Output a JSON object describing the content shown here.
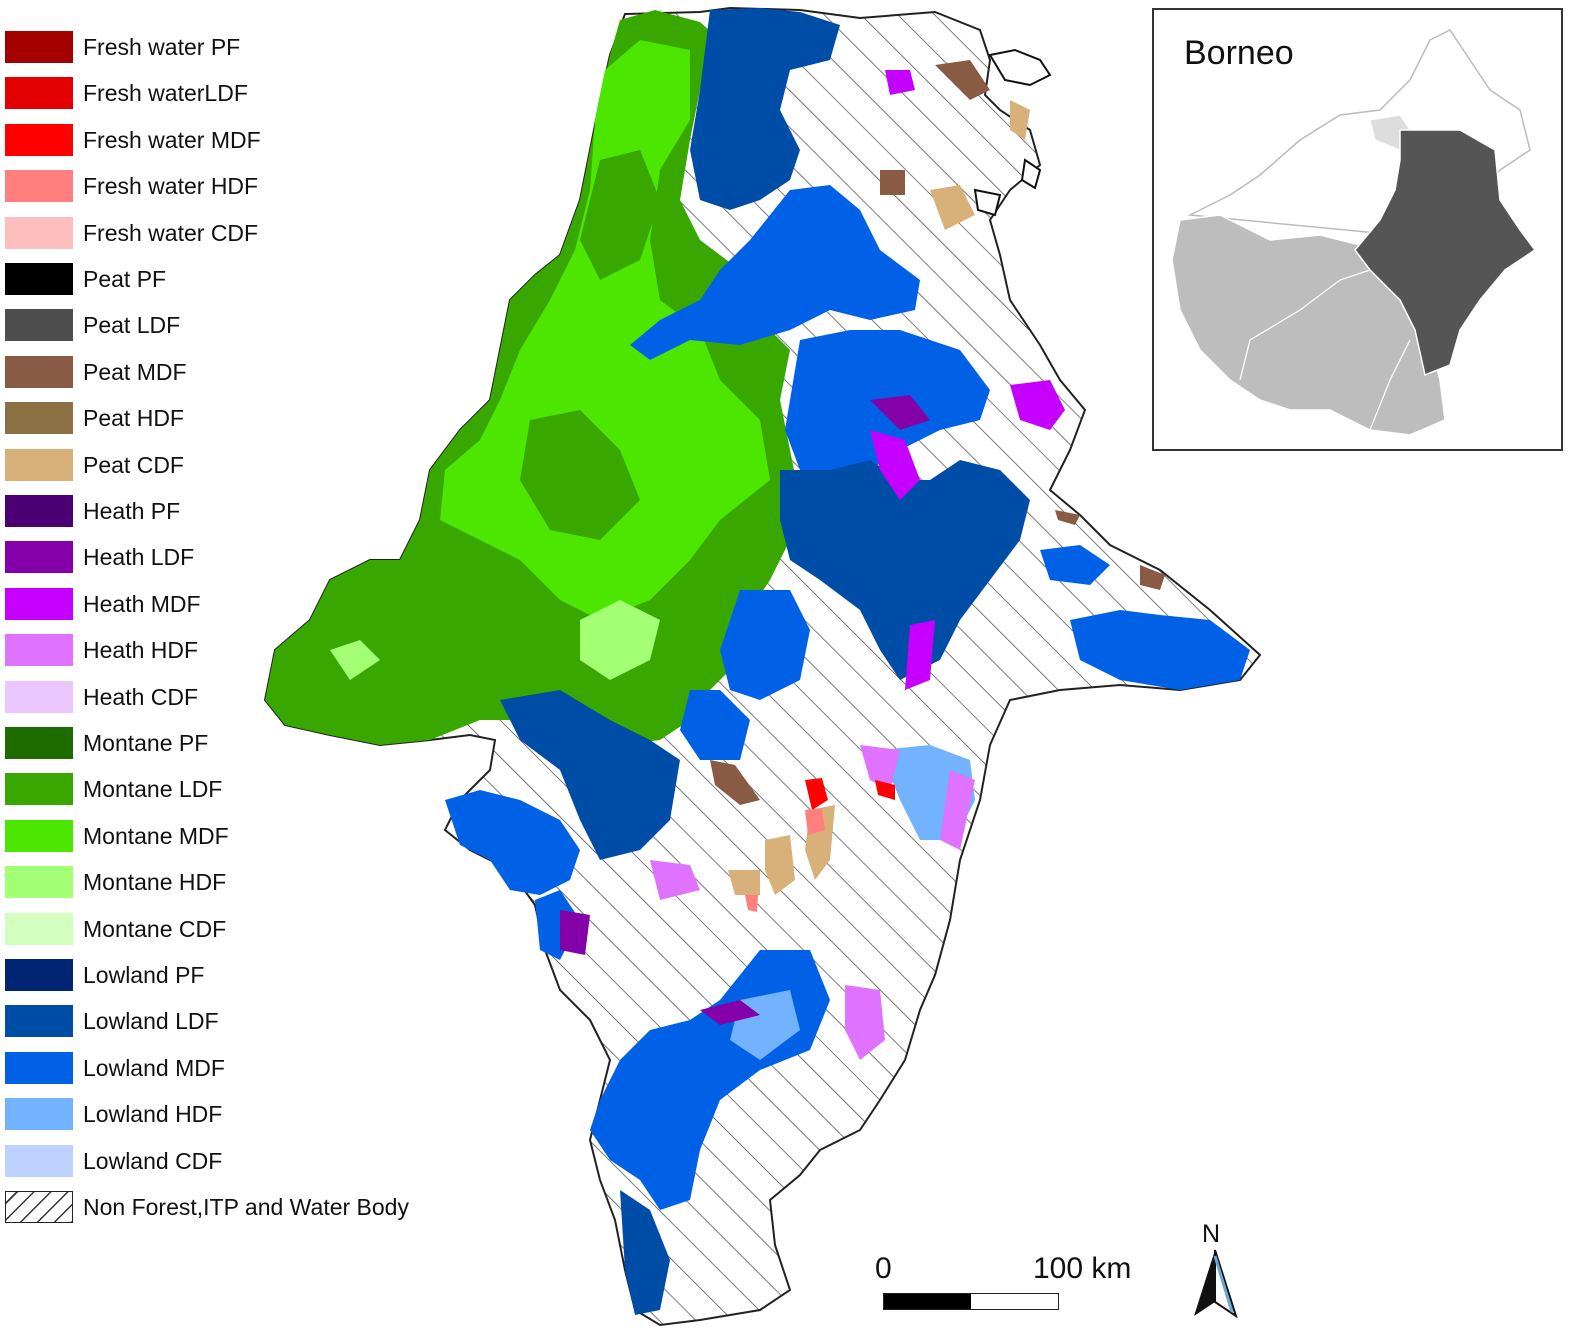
{
  "legend": {
    "items": [
      {
        "label": "Fresh water PF",
        "color": "#A50000"
      },
      {
        "label": "Fresh waterLDF",
        "color": "#E30000"
      },
      {
        "label": "Fresh water MDF",
        "color": "#FF0000"
      },
      {
        "label": "Fresh water HDF",
        "color": "#FF7F7F"
      },
      {
        "label": "Fresh water CDF",
        "color": "#FFBEBE"
      },
      {
        "label": "Peat PF",
        "color": "#000000"
      },
      {
        "label": "Peat LDF",
        "color": "#4E4E4E"
      },
      {
        "label": "Peat MDF",
        "color": "#895A44"
      },
      {
        "label": "Peat HDF",
        "color": "#8B7043"
      },
      {
        "label": "Peat CDF",
        "color": "#D7B07A"
      },
      {
        "label": "Heath PF",
        "color": "#4C0073"
      },
      {
        "label": "Heath LDF",
        "color": "#8400A8"
      },
      {
        "label": "Heath MDF",
        "color": "#C500FF"
      },
      {
        "label": "Heath HDF",
        "color": "#DF73FF"
      },
      {
        "label": "Heath CDF",
        "color": "#EBC6FF"
      },
      {
        "label": "Montane PF",
        "color": "#1E6B00"
      },
      {
        "label": "Montane LDF",
        "color": "#38A800"
      },
      {
        "label": "Montane MDF",
        "color": "#4CE600"
      },
      {
        "label": "Montane HDF",
        "color": "#A3FF73"
      },
      {
        "label": "Montane CDF",
        "color": "#D3FFBE"
      },
      {
        "label": "Lowland PF",
        "color": "#002673"
      },
      {
        "label": "Lowland LDF",
        "color": "#004DA8"
      },
      {
        "label": "Lowland MDF",
        "color": "#0061E6"
      },
      {
        "label": "Lowland HDF",
        "color": "#73B2FF"
      },
      {
        "label": "Lowland CDF",
        "color": "#BED2FF"
      },
      {
        "label": "Non Forest,ITP and Water Body",
        "color": "hatched"
      }
    ]
  },
  "inset": {
    "title": "Borneo",
    "colors": {
      "highlight": "#555555",
      "region": "#BDBDBD",
      "outline": "#FFFFFF"
    }
  },
  "scale_bar": {
    "start_label": "0",
    "end_label": "100 km"
  },
  "north_arrow": {
    "label": "N"
  }
}
